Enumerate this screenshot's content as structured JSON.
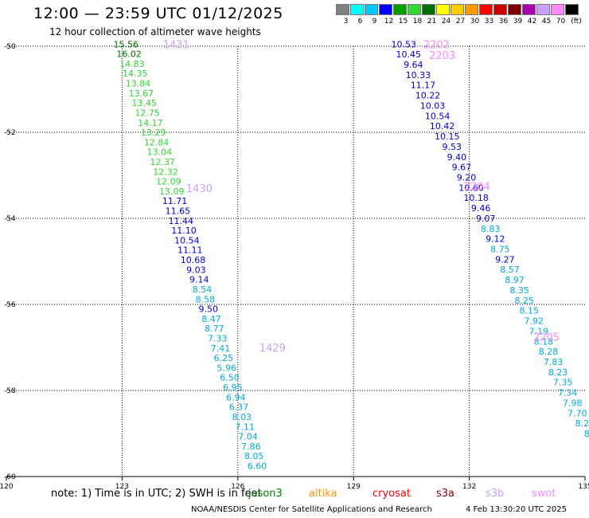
{
  "title": "12:00 — 23:59 UTC 01/12/2025",
  "subtitle": "12 hour collection of altimeter wave heights",
  "legend": {
    "colors": [
      "#808080",
      "#00ffff",
      "#00c8ff",
      "#0000ff",
      "#00a000",
      "#33d633",
      "#007000",
      "#ffff00",
      "#ffcc00",
      "#ff9900",
      "#ff0000",
      "#cc0000",
      "#800000",
      "#aa00aa",
      "#c8a0ff",
      "#ff88ff",
      "#000000"
    ],
    "labels": [
      "3",
      "6",
      "9",
      "12",
      "15",
      "18",
      "21",
      "24",
      "27",
      "30",
      "33",
      "36",
      "39",
      "42",
      "45",
      "70",
      "(ft)"
    ]
  },
  "note": {
    "prefix": "note:  1) Time is in UTC;  2) SWH is in feet",
    "satellites": [
      {
        "name": "jason3",
        "color": "#008000"
      },
      {
        "name": "altika",
        "color": "#ff9900"
      },
      {
        "name": "cryosat",
        "color": "#ff0000"
      },
      {
        "name": "s3a",
        "color": "#8b0000"
      },
      {
        "name": "s3b",
        "color": "#c8a0ff"
      },
      {
        "name": "swot",
        "color": "#ff88ff"
      }
    ]
  },
  "credit": "NOAA/NESDIS Center for Satellite Applications and Research",
  "timestamp": "4 Feb 13:30:20 UTC 2025",
  "chart_data": {
    "type": "scatter",
    "title": "12:00 — 23:59 UTC 01/12/2025",
    "xlabel": "",
    "ylabel": "",
    "xlim": [
      120,
      135
    ],
    "ylim": [
      -60,
      -50
    ],
    "x_ticks": [
      "120",
      "123",
      "126",
      "129",
      "132",
      "135"
    ],
    "y_ticks": [
      "-50",
      "-52",
      "-54",
      "-56",
      "-58",
      "-60"
    ],
    "grid": true,
    "tracks": [
      {
        "start": [
          123.1,
          -49.95
        ],
        "end": [
          126.5,
          -59.75
        ],
        "points": [
          {
            "v": "15.56",
            "c": "#007000"
          },
          {
            "v": "16.02",
            "c": "#007000"
          },
          {
            "v": "14.83",
            "c": "#33d633"
          },
          {
            "v": "14.35",
            "c": "#33d633"
          },
          {
            "v": "13.84",
            "c": "#33d633"
          },
          {
            "v": "13.67",
            "c": "#33d633"
          },
          {
            "v": "13.45",
            "c": "#33d633"
          },
          {
            "v": "12.75",
            "c": "#33d633"
          },
          {
            "v": "14.17",
            "c": "#33d633"
          },
          {
            "v": "13.29",
            "c": "#33d633"
          },
          {
            "v": "12.84",
            "c": "#33d633"
          },
          {
            "v": "13.04",
            "c": "#33d633"
          },
          {
            "v": "12.37",
            "c": "#33d633"
          },
          {
            "v": "12.32",
            "c": "#33d633"
          },
          {
            "v": "12.09",
            "c": "#33d633"
          },
          {
            "v": "13.09",
            "c": "#33d633"
          },
          {
            "v": "11.71",
            "c": "#0000cc"
          },
          {
            "v": "11.65",
            "c": "#0000cc"
          },
          {
            "v": "11.44",
            "c": "#0000cc"
          },
          {
            "v": "11.10",
            "c": "#0000cc"
          },
          {
            "v": "10.54",
            "c": "#0000cc"
          },
          {
            "v": "11.11",
            "c": "#0000cc"
          },
          {
            "v": "10.68",
            "c": "#0000cc"
          },
          {
            "v": "9.03",
            "c": "#0000cc"
          },
          {
            "v": "9.14",
            "c": "#0000cc"
          },
          {
            "v": "8.54",
            "c": "#00aadd"
          },
          {
            "v": "8.58",
            "c": "#00aadd"
          },
          {
            "v": "9.50",
            "c": "#0000cc"
          },
          {
            "v": "8.47",
            "c": "#00aadd"
          },
          {
            "v": "8.77",
            "c": "#00aadd"
          },
          {
            "v": "7.33",
            "c": "#00aadd"
          },
          {
            "v": "7.41",
            "c": "#00aadd"
          },
          {
            "v": "6.25",
            "c": "#00aadd"
          },
          {
            "v": "5.96",
            "c": "#00aadd"
          },
          {
            "v": "6.50",
            "c": "#00aadd"
          },
          {
            "v": "6.95",
            "c": "#00aadd"
          },
          {
            "v": "6.94",
            "c": "#00aadd"
          },
          {
            "v": "6.37",
            "c": "#00aadd"
          },
          {
            "v": "8.03",
            "c": "#00aadd"
          },
          {
            "v": "7.11",
            "c": "#00aadd"
          },
          {
            "v": "7.04",
            "c": "#00aadd"
          },
          {
            "v": "7.86",
            "c": "#00aadd"
          },
          {
            "v": "8.05",
            "c": "#00aadd"
          },
          {
            "v": "6.60",
            "c": "#00aadd"
          }
        ],
        "times": [
          {
            "t": "1431",
            "x": 124.4,
            "y": -49.95
          },
          {
            "t": "1430",
            "x": 125.0,
            "y": -53.3
          },
          {
            "t": "1429",
            "x": 126.9,
            "y": -57.0
          }
        ]
      },
      {
        "start": [
          130.3,
          -49.95
        ],
        "end": [
          135.05,
          -59.0
        ],
        "points": [
          {
            "v": "10.53",
            "c": "#0000cc"
          },
          {
            "v": "10.45",
            "c": "#0000cc"
          },
          {
            "v": "9.64",
            "c": "#0000cc"
          },
          {
            "v": "10.33",
            "c": "#0000cc"
          },
          {
            "v": "11.17",
            "c": "#0000cc"
          },
          {
            "v": "10.22",
            "c": "#0000cc"
          },
          {
            "v": "10.03",
            "c": "#0000cc"
          },
          {
            "v": "10.54",
            "c": "#0000cc"
          },
          {
            "v": "10.42",
            "c": "#0000cc"
          },
          {
            "v": "10.15",
            "c": "#0000cc"
          },
          {
            "v": "9.53",
            "c": "#0000cc"
          },
          {
            "v": "9.40",
            "c": "#0000cc"
          },
          {
            "v": "9.67",
            "c": "#0000cc"
          },
          {
            "v": "9.20",
            "c": "#0000cc"
          },
          {
            "v": "10.60",
            "c": "#0000cc"
          },
          {
            "v": "10.18",
            "c": "#0000cc"
          },
          {
            "v": "9.46",
            "c": "#0000cc"
          },
          {
            "v": "9.07",
            "c": "#0000cc"
          },
          {
            "v": "8.83",
            "c": "#00aadd"
          },
          {
            "v": "9.12",
            "c": "#0000cc"
          },
          {
            "v": "8.75",
            "c": "#00aadd"
          },
          {
            "v": "9.27",
            "c": "#0000cc"
          },
          {
            "v": "8.57",
            "c": "#00aadd"
          },
          {
            "v": "8.97",
            "c": "#00aadd"
          },
          {
            "v": "8.35",
            "c": "#00aadd"
          },
          {
            "v": "8.25",
            "c": "#00aadd"
          },
          {
            "v": "8.15",
            "c": "#00aadd"
          },
          {
            "v": "7.92",
            "c": "#00aadd"
          },
          {
            "v": "7.19",
            "c": "#00aadd"
          },
          {
            "v": "8.18",
            "c": "#00aadd"
          },
          {
            "v": "8.28",
            "c": "#00aadd"
          },
          {
            "v": "7.83",
            "c": "#00aadd"
          },
          {
            "v": "8.23",
            "c": "#00aadd"
          },
          {
            "v": "7.35",
            "c": "#00aadd"
          },
          {
            "v": "7.34",
            "c": "#00aadd"
          },
          {
            "v": "7.98",
            "c": "#00aadd"
          },
          {
            "v": "7.70",
            "c": "#00aadd"
          },
          {
            "v": "8.2",
            "c": "#00aadd"
          },
          {
            "v": "8",
            "c": "#00aadd"
          }
        ],
        "times": [
          {
            "t": "2202",
            "x": 131.15,
            "y": -49.95
          },
          {
            "t": "2203",
            "x": 131.3,
            "y": -50.2
          },
          {
            "t": "2204",
            "x": 132.2,
            "y": -53.25
          },
          {
            "t": "2205",
            "x": 134.0,
            "y": -56.75
          }
        ]
      }
    ],
    "time_label_color": "#c8a0ff",
    "time_label_color_alt": "#ff88ff"
  }
}
